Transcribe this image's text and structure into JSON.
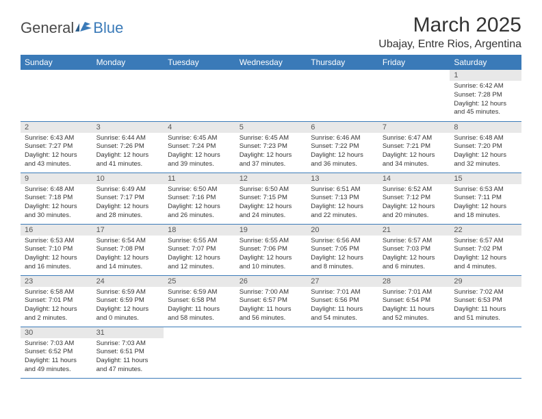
{
  "logo": {
    "part1": "General",
    "part2": "Blue"
  },
  "title": "March 2025",
  "location": "Ubajay, Entre Rios, Argentina",
  "colors": {
    "header_bg": "#3a7ab8",
    "header_fg": "#ffffff",
    "daynum_bg": "#e8e8e8",
    "border": "#3a7ab8",
    "text": "#333333"
  },
  "weekdays": [
    "Sunday",
    "Monday",
    "Tuesday",
    "Wednesday",
    "Thursday",
    "Friday",
    "Saturday"
  ],
  "weeks": [
    [
      null,
      null,
      null,
      null,
      null,
      null,
      {
        "n": "1",
        "sunrise": "Sunrise: 6:42 AM",
        "sunset": "Sunset: 7:28 PM",
        "daylight1": "Daylight: 12 hours",
        "daylight2": "and 45 minutes."
      }
    ],
    [
      {
        "n": "2",
        "sunrise": "Sunrise: 6:43 AM",
        "sunset": "Sunset: 7:27 PM",
        "daylight1": "Daylight: 12 hours",
        "daylight2": "and 43 minutes."
      },
      {
        "n": "3",
        "sunrise": "Sunrise: 6:44 AM",
        "sunset": "Sunset: 7:26 PM",
        "daylight1": "Daylight: 12 hours",
        "daylight2": "and 41 minutes."
      },
      {
        "n": "4",
        "sunrise": "Sunrise: 6:45 AM",
        "sunset": "Sunset: 7:24 PM",
        "daylight1": "Daylight: 12 hours",
        "daylight2": "and 39 minutes."
      },
      {
        "n": "5",
        "sunrise": "Sunrise: 6:45 AM",
        "sunset": "Sunset: 7:23 PM",
        "daylight1": "Daylight: 12 hours",
        "daylight2": "and 37 minutes."
      },
      {
        "n": "6",
        "sunrise": "Sunrise: 6:46 AM",
        "sunset": "Sunset: 7:22 PM",
        "daylight1": "Daylight: 12 hours",
        "daylight2": "and 36 minutes."
      },
      {
        "n": "7",
        "sunrise": "Sunrise: 6:47 AM",
        "sunset": "Sunset: 7:21 PM",
        "daylight1": "Daylight: 12 hours",
        "daylight2": "and 34 minutes."
      },
      {
        "n": "8",
        "sunrise": "Sunrise: 6:48 AM",
        "sunset": "Sunset: 7:20 PM",
        "daylight1": "Daylight: 12 hours",
        "daylight2": "and 32 minutes."
      }
    ],
    [
      {
        "n": "9",
        "sunrise": "Sunrise: 6:48 AM",
        "sunset": "Sunset: 7:18 PM",
        "daylight1": "Daylight: 12 hours",
        "daylight2": "and 30 minutes."
      },
      {
        "n": "10",
        "sunrise": "Sunrise: 6:49 AM",
        "sunset": "Sunset: 7:17 PM",
        "daylight1": "Daylight: 12 hours",
        "daylight2": "and 28 minutes."
      },
      {
        "n": "11",
        "sunrise": "Sunrise: 6:50 AM",
        "sunset": "Sunset: 7:16 PM",
        "daylight1": "Daylight: 12 hours",
        "daylight2": "and 26 minutes."
      },
      {
        "n": "12",
        "sunrise": "Sunrise: 6:50 AM",
        "sunset": "Sunset: 7:15 PM",
        "daylight1": "Daylight: 12 hours",
        "daylight2": "and 24 minutes."
      },
      {
        "n": "13",
        "sunrise": "Sunrise: 6:51 AM",
        "sunset": "Sunset: 7:13 PM",
        "daylight1": "Daylight: 12 hours",
        "daylight2": "and 22 minutes."
      },
      {
        "n": "14",
        "sunrise": "Sunrise: 6:52 AM",
        "sunset": "Sunset: 7:12 PM",
        "daylight1": "Daylight: 12 hours",
        "daylight2": "and 20 minutes."
      },
      {
        "n": "15",
        "sunrise": "Sunrise: 6:53 AM",
        "sunset": "Sunset: 7:11 PM",
        "daylight1": "Daylight: 12 hours",
        "daylight2": "and 18 minutes."
      }
    ],
    [
      {
        "n": "16",
        "sunrise": "Sunrise: 6:53 AM",
        "sunset": "Sunset: 7:10 PM",
        "daylight1": "Daylight: 12 hours",
        "daylight2": "and 16 minutes."
      },
      {
        "n": "17",
        "sunrise": "Sunrise: 6:54 AM",
        "sunset": "Sunset: 7:08 PM",
        "daylight1": "Daylight: 12 hours",
        "daylight2": "and 14 minutes."
      },
      {
        "n": "18",
        "sunrise": "Sunrise: 6:55 AM",
        "sunset": "Sunset: 7:07 PM",
        "daylight1": "Daylight: 12 hours",
        "daylight2": "and 12 minutes."
      },
      {
        "n": "19",
        "sunrise": "Sunrise: 6:55 AM",
        "sunset": "Sunset: 7:06 PM",
        "daylight1": "Daylight: 12 hours",
        "daylight2": "and 10 minutes."
      },
      {
        "n": "20",
        "sunrise": "Sunrise: 6:56 AM",
        "sunset": "Sunset: 7:05 PM",
        "daylight1": "Daylight: 12 hours",
        "daylight2": "and 8 minutes."
      },
      {
        "n": "21",
        "sunrise": "Sunrise: 6:57 AM",
        "sunset": "Sunset: 7:03 PM",
        "daylight1": "Daylight: 12 hours",
        "daylight2": "and 6 minutes."
      },
      {
        "n": "22",
        "sunrise": "Sunrise: 6:57 AM",
        "sunset": "Sunset: 7:02 PM",
        "daylight1": "Daylight: 12 hours",
        "daylight2": "and 4 minutes."
      }
    ],
    [
      {
        "n": "23",
        "sunrise": "Sunrise: 6:58 AM",
        "sunset": "Sunset: 7:01 PM",
        "daylight1": "Daylight: 12 hours",
        "daylight2": "and 2 minutes."
      },
      {
        "n": "24",
        "sunrise": "Sunrise: 6:59 AM",
        "sunset": "Sunset: 6:59 PM",
        "daylight1": "Daylight: 12 hours",
        "daylight2": "and 0 minutes."
      },
      {
        "n": "25",
        "sunrise": "Sunrise: 6:59 AM",
        "sunset": "Sunset: 6:58 PM",
        "daylight1": "Daylight: 11 hours",
        "daylight2": "and 58 minutes."
      },
      {
        "n": "26",
        "sunrise": "Sunrise: 7:00 AM",
        "sunset": "Sunset: 6:57 PM",
        "daylight1": "Daylight: 11 hours",
        "daylight2": "and 56 minutes."
      },
      {
        "n": "27",
        "sunrise": "Sunrise: 7:01 AM",
        "sunset": "Sunset: 6:56 PM",
        "daylight1": "Daylight: 11 hours",
        "daylight2": "and 54 minutes."
      },
      {
        "n": "28",
        "sunrise": "Sunrise: 7:01 AM",
        "sunset": "Sunset: 6:54 PM",
        "daylight1": "Daylight: 11 hours",
        "daylight2": "and 52 minutes."
      },
      {
        "n": "29",
        "sunrise": "Sunrise: 7:02 AM",
        "sunset": "Sunset: 6:53 PM",
        "daylight1": "Daylight: 11 hours",
        "daylight2": "and 51 minutes."
      }
    ],
    [
      {
        "n": "30",
        "sunrise": "Sunrise: 7:03 AM",
        "sunset": "Sunset: 6:52 PM",
        "daylight1": "Daylight: 11 hours",
        "daylight2": "and 49 minutes."
      },
      {
        "n": "31",
        "sunrise": "Sunrise: 7:03 AM",
        "sunset": "Sunset: 6:51 PM",
        "daylight1": "Daylight: 11 hours",
        "daylight2": "and 47 minutes."
      },
      null,
      null,
      null,
      null,
      null
    ]
  ]
}
